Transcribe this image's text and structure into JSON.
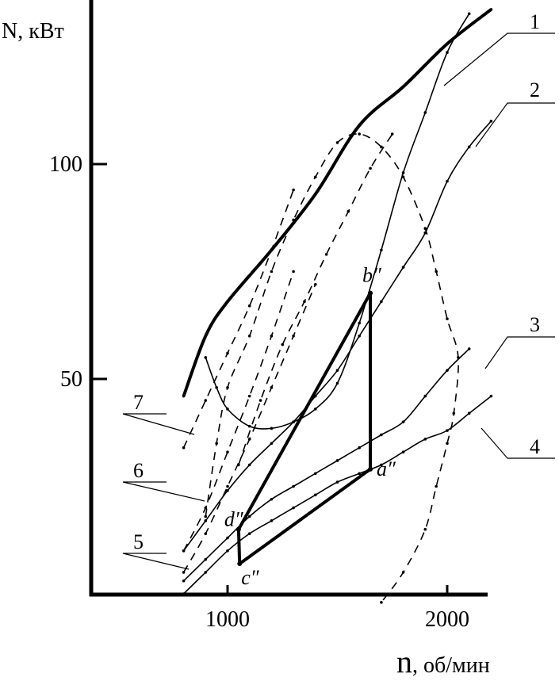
{
  "chart_data": {
    "type": "line",
    "title": "",
    "ylabel": "N, кВт",
    "xlabel_symbol": "n",
    "xlabel_unit": ", об/мин",
    "xlim": [
      500,
      2200
    ],
    "ylim": [
      -5,
      140
    ],
    "xticks": [
      {
        "value": 1000,
        "label": "1000"
      },
      {
        "value": 2000,
        "label": "2000"
      }
    ],
    "yticks": [
      {
        "value": 50,
        "label": "50"
      },
      {
        "value": 100,
        "label": "100"
      }
    ],
    "grid": false,
    "series": [
      {
        "name": "1",
        "style": "thick",
        "points": [
          [
            800,
            46
          ],
          [
            900,
            60
          ],
          [
            1000,
            68
          ],
          [
            1200,
            80
          ],
          [
            1400,
            93
          ],
          [
            1600,
            109
          ],
          [
            1800,
            118
          ],
          [
            2000,
            128
          ],
          [
            2200,
            136
          ]
        ]
      },
      {
        "name": "",
        "style": "solid",
        "points": [
          [
            900,
            55
          ],
          [
            950,
            48
          ],
          [
            1000,
            43
          ],
          [
            1100,
            39
          ],
          [
            1200,
            38.5
          ],
          [
            1300,
            40
          ],
          [
            1400,
            43
          ],
          [
            1500,
            49
          ],
          [
            1600,
            63
          ],
          [
            1700,
            80
          ],
          [
            1800,
            98
          ],
          [
            1900,
            112
          ],
          [
            2000,
            126
          ],
          [
            2100,
            135
          ]
        ]
      },
      {
        "name": "2",
        "style": "solid",
        "points": [
          [
            800,
            10
          ],
          [
            900,
            17
          ],
          [
            1000,
            24
          ],
          [
            1100,
            30
          ],
          [
            1200,
            35
          ],
          [
            1300,
            40
          ],
          [
            1400,
            46
          ],
          [
            1500,
            52
          ],
          [
            1600,
            60
          ],
          [
            1700,
            68
          ],
          [
            1800,
            76
          ],
          [
            1900,
            84
          ],
          [
            2000,
            96
          ],
          [
            2100,
            104
          ],
          [
            2200,
            110
          ]
        ]
      },
      {
        "name": "3",
        "style": "solid",
        "points": [
          [
            800,
            3
          ],
          [
            900,
            8
          ],
          [
            1000,
            13
          ],
          [
            1100,
            18
          ],
          [
            1200,
            22
          ],
          [
            1300,
            25
          ],
          [
            1400,
            28
          ],
          [
            1500,
            31
          ],
          [
            1600,
            34
          ],
          [
            1700,
            37
          ],
          [
            1800,
            40
          ],
          [
            1900,
            46
          ],
          [
            2000,
            52
          ],
          [
            2100,
            57
          ]
        ]
      },
      {
        "name": "4",
        "style": "solid",
        "points": [
          [
            800,
            0
          ],
          [
            900,
            5
          ],
          [
            1000,
            10
          ],
          [
            1100,
            14
          ],
          [
            1200,
            17
          ],
          [
            1300,
            20
          ],
          [
            1400,
            23
          ],
          [
            1500,
            26
          ],
          [
            1600,
            28
          ],
          [
            1700,
            30
          ],
          [
            1800,
            33
          ],
          [
            1900,
            36
          ],
          [
            2000,
            38
          ],
          [
            2100,
            42
          ],
          [
            2200,
            46
          ]
        ]
      },
      {
        "name": "",
        "style": "dashed",
        "points": [
          [
            900,
            18
          ],
          [
            950,
            35
          ],
          [
            1000,
            48
          ],
          [
            1100,
            60
          ],
          [
            1200,
            75
          ],
          [
            1300,
            87
          ],
          [
            1400,
            97
          ],
          [
            1500,
            105
          ],
          [
            1600,
            107
          ],
          [
            1700,
            104
          ],
          [
            1800,
            97
          ],
          [
            1900,
            85
          ],
          [
            1950,
            75
          ],
          [
            2000,
            64
          ],
          [
            2050,
            55
          ],
          [
            2030,
            42
          ],
          [
            2000,
            35
          ],
          [
            1950,
            25
          ],
          [
            1900,
            15
          ],
          [
            1800,
            5
          ],
          [
            1700,
            -2
          ]
        ]
      },
      {
        "name": "",
        "style": "dashed",
        "points": [
          [
            1050,
            30
          ],
          [
            1150,
            45
          ],
          [
            1250,
            58
          ],
          [
            1350,
            68
          ],
          [
            1450,
            79
          ],
          [
            1550,
            89
          ],
          [
            1650,
            99
          ],
          [
            1750,
            107
          ]
        ]
      },
      {
        "name": "5",
        "style": "dashed",
        "points": [
          [
            800,
            5
          ],
          [
            900,
            14
          ],
          [
            1000,
            25
          ],
          [
            1100,
            36
          ],
          [
            1200,
            48
          ],
          [
            1300,
            60
          ],
          [
            1400,
            72
          ]
        ]
      },
      {
        "name": "6",
        "style": "dashed",
        "points": [
          [
            800,
            10
          ],
          [
            900,
            20
          ],
          [
            1000,
            33
          ],
          [
            1100,
            46
          ],
          [
            1200,
            60
          ],
          [
            1300,
            75
          ]
        ]
      },
      {
        "name": "7",
        "style": "dashed",
        "points": [
          [
            800,
            34
          ],
          [
            900,
            45
          ],
          [
            1000,
            56
          ],
          [
            1100,
            67
          ],
          [
            1200,
            80
          ],
          [
            1300,
            94
          ]
        ]
      },
      {
        "name": "",
        "style": "thick",
        "points": [
          [
            1650,
            29
          ],
          [
            1650,
            70
          ],
          [
            1050,
            15
          ],
          [
            1055,
            7
          ],
          [
            1650,
            29
          ]
        ]
      }
    ],
    "series_labels": [
      {
        "series": "1",
        "label": "1"
      },
      {
        "series": "2",
        "label": "2"
      },
      {
        "series": "3",
        "label": "3"
      },
      {
        "series": "4",
        "label": "4"
      },
      {
        "series": "5",
        "label": "5"
      },
      {
        "series": "6",
        "label": "6"
      },
      {
        "series": "7",
        "label": "7"
      }
    ],
    "annotations": [
      {
        "label": "a″",
        "x": 1650,
        "y": 29
      },
      {
        "label": "b″",
        "x": 1650,
        "y": 70
      },
      {
        "label": "c″",
        "x": 1055,
        "y": 7
      },
      {
        "label": "d″",
        "x": 1050,
        "y": 15
      }
    ]
  }
}
